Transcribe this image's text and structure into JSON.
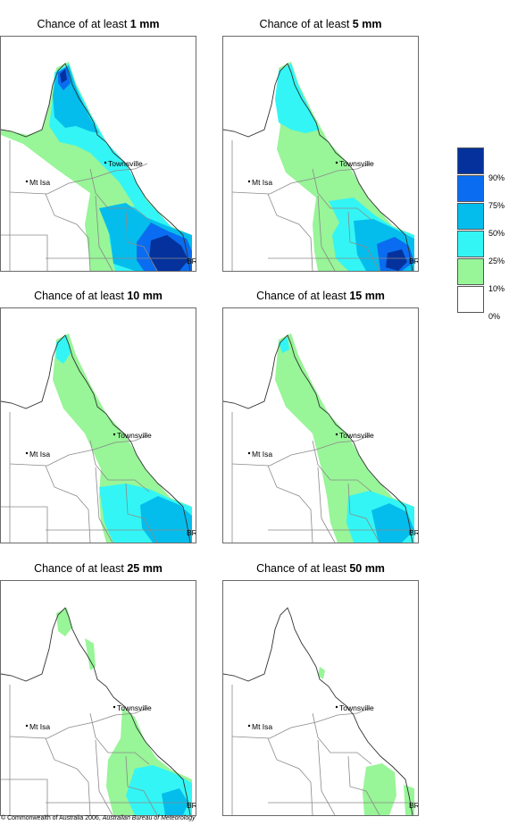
{
  "panels": [
    {
      "prefix": "Chance of at least ",
      "amount": "1 mm"
    },
    {
      "prefix": "Chance of at least ",
      "amount": "5 mm"
    },
    {
      "prefix": "Chance of at least ",
      "amount": "10 mm"
    },
    {
      "prefix": "Chance of at least ",
      "amount": "15 mm"
    },
    {
      "prefix": "Chance of at least ",
      "amount": "25 mm"
    },
    {
      "prefix": "Chance of at least ",
      "amount": "50 mm"
    }
  ],
  "places": {
    "townsville": "Townsville",
    "mt_isa": "Mt Isa",
    "bris": "BRIS"
  },
  "legend": {
    "labels": [
      "90%",
      "75%",
      "50%",
      "25%",
      "10%",
      "0%"
    ],
    "colors": [
      "#04319b",
      "#0a6cf0",
      "#05bdec",
      "#33f5f5",
      "#98f598",
      "#ffffff"
    ]
  },
  "copyright": {
    "prefix": "© Commonwealth of Australia 2006, ",
    "org": "Australian Bureau of Meteorology"
  }
}
